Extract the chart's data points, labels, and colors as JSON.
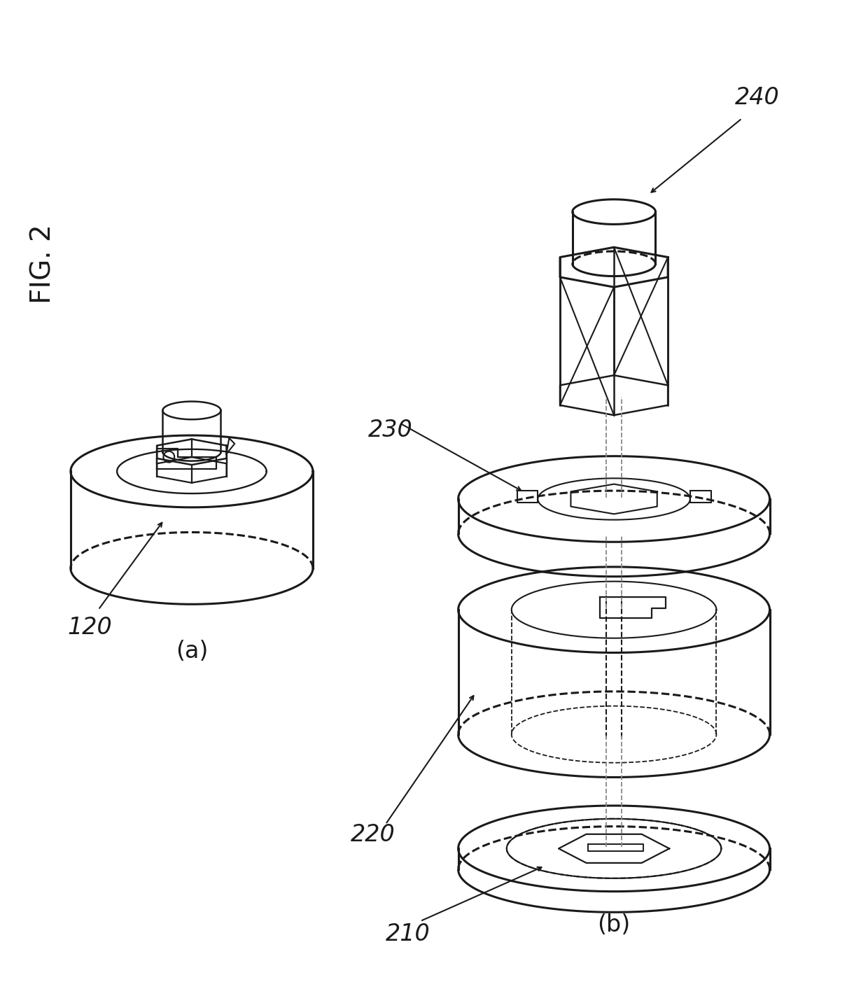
{
  "background_color": "#ffffff",
  "line_color": "#1a1a1a",
  "dashed_color": "#888888",
  "fig_label": "FIG. 2",
  "sub_a": "(a)",
  "sub_b": "(b)",
  "label_120": "120",
  "label_210": "210",
  "label_220": "220",
  "label_230": "230",
  "label_240": "240"
}
